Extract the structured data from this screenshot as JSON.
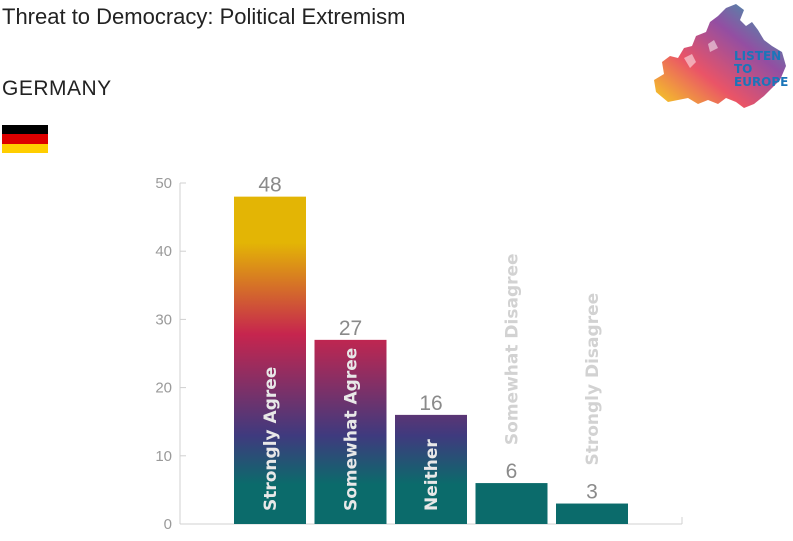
{
  "header": {
    "title": "Threat to Democracy: Political Extremism",
    "country": "GERMANY"
  },
  "logo": {
    "text_line1": "LISTEN",
    "text_line2": "TO",
    "text_line3": "EUROPE"
  },
  "colors": {
    "gradient_top": "#e3b505",
    "gradient_mid": "#c6254e",
    "gradient_low": "#3f3a7e",
    "teal": "#0b6b6b",
    "inside_label": "#e8e8e8",
    "outside_label": "#d2d2d2",
    "flag": [
      "#000000",
      "#dd0000",
      "#ffce00"
    ]
  },
  "chart_data": {
    "type": "bar",
    "categories": [
      "Strongly Agree",
      "Somewhat Agree",
      "Neither",
      "Somewhat Disagree",
      "Strongly Disagree"
    ],
    "values": [
      48,
      27,
      16,
      6,
      3
    ],
    "ylim": [
      0,
      50
    ],
    "yticks": [
      0,
      10,
      20,
      30,
      40,
      50
    ],
    "xlabel": "",
    "ylabel": "",
    "grid": false,
    "legend": "none"
  }
}
